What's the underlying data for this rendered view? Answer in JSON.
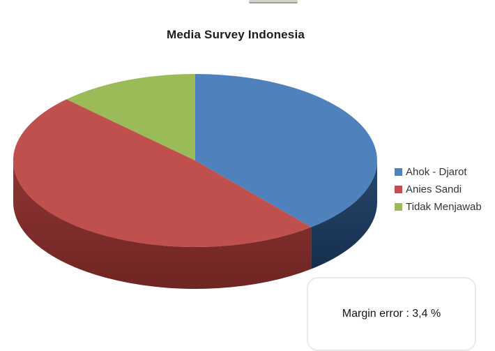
{
  "chart_data": {
    "type": "pie",
    "three_d": true,
    "title": "Media Survey Indonesia",
    "legend_position": "right",
    "start_angle_deg": 0,
    "rotation": "clockwise",
    "unit": "%",
    "series": [
      {
        "label": "Ahok - Djarot",
        "value": 39,
        "color": "#4f81bd",
        "side_color_top": "#28486e",
        "side_color_bottom": "#152e4d"
      },
      {
        "label": "Anies Sandi",
        "value": 48.5,
        "color": "#c0504d",
        "side_color_top": "#8f3533",
        "side_color_bottom": "#6f2523"
      },
      {
        "label": "Tidak Menjawab",
        "value": 12.5,
        "color": "#9bbb59"
      }
    ],
    "annotations": [
      "Margin error : 3,4 %"
    ]
  }
}
